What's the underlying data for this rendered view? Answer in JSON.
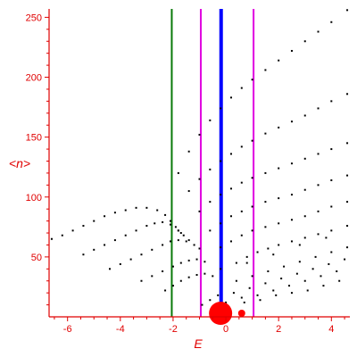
{
  "chart_data": {
    "type": "scatter",
    "title": "",
    "xlabel": "E",
    "ylabel": "<n>",
    "xlim": [
      -6.7,
      4.7
    ],
    "ylim": [
      0,
      257
    ],
    "xticks": [
      -6,
      -4,
      -2,
      0,
      2,
      4
    ],
    "xtick_labels": [
      "-6",
      "-4",
      "-2",
      "0",
      "2",
      "4"
    ],
    "yticks": [
      50,
      100,
      150,
      200,
      250
    ],
    "ytick_labels": [
      "50",
      "100",
      "150",
      "200",
      "250"
    ],
    "grid": false,
    "axis_color": "#e00000",
    "point_color": "#000000",
    "series": [
      {
        "id": "low-branch-1",
        "x": [
          -6.6,
          -6.2,
          -5.8,
          -5.4,
          -5.0,
          -4.6,
          -4.2,
          -3.8,
          -3.4,
          -3.0,
          -2.6,
          -2.3,
          -2.1,
          -1.9,
          -1.8,
          -1.7
        ],
        "y": [
          65,
          68,
          72,
          76,
          80,
          84,
          87,
          89,
          91,
          91,
          89,
          85,
          80,
          75,
          72,
          70
        ]
      },
      {
        "id": "low-branch-2",
        "x": [
          -5.4,
          -5.0,
          -4.6,
          -4.2,
          -3.8,
          -3.4,
          -3.0,
          -2.7,
          -2.4,
          -2.1,
          -1.8,
          -1.6,
          -1.4
        ],
        "y": [
          52,
          56,
          60,
          64,
          68,
          72,
          76,
          78,
          79,
          77,
          72,
          68,
          64
        ]
      },
      {
        "id": "low-branch-3",
        "x": [
          -4.4,
          -4.0,
          -3.6,
          -3.2,
          -2.8,
          -2.4,
          -2.1,
          -1.8,
          -1.5,
          -1.2,
          -1.0
        ],
        "y": [
          40,
          44,
          48,
          52,
          56,
          60,
          63,
          64,
          63,
          60,
          57
        ]
      },
      {
        "id": "low-branch-4",
        "x": [
          -3.2,
          -2.8,
          -2.4,
          -2.0,
          -1.7,
          -1.4,
          -1.1,
          -0.8
        ],
        "y": [
          30,
          34,
          38,
          42,
          45,
          47,
          48,
          46
        ]
      },
      {
        "id": "low-branch-5",
        "x": [
          -2.3,
          -2.0,
          -1.7,
          -1.4,
          -1.1,
          -0.8,
          -0.5
        ],
        "y": [
          22,
          26,
          30,
          33,
          35,
          36,
          34
        ]
      },
      {
        "id": "rise-1",
        "x": [
          -1.8,
          -1.4,
          -1.0,
          -0.6,
          -0.2,
          0.2,
          0.6,
          1.0,
          1.5,
          2.0,
          2.5,
          3.0,
          3.5,
          4.0,
          4.6
        ],
        "y": [
          120,
          138,
          152,
          164,
          174,
          183,
          191,
          198,
          206,
          214,
          222,
          230,
          238,
          246,
          256
        ]
      },
      {
        "id": "rise-2",
        "x": [
          -1.4,
          -1.0,
          -0.6,
          -0.2,
          0.2,
          0.6,
          1.0,
          1.5,
          2.0,
          2.5,
          3.0,
          3.5,
          4.0,
          4.6
        ],
        "y": [
          105,
          115,
          123,
          130,
          136,
          142,
          147,
          153,
          158,
          163,
          168,
          174,
          180,
          186
        ]
      },
      {
        "id": "rise-3",
        "x": [
          -1.0,
          -0.6,
          -0.2,
          0.2,
          0.6,
          1.0,
          1.5,
          2.0,
          2.5,
          3.0,
          3.5,
          4.0,
          4.6
        ],
        "y": [
          88,
          96,
          102,
          107,
          112,
          116,
          120,
          124,
          128,
          132,
          136,
          140,
          145
        ]
      },
      {
        "id": "rise-4",
        "x": [
          -0.6,
          -0.2,
          0.2,
          0.6,
          1.0,
          1.5,
          2.0,
          2.5,
          3.0,
          3.5,
          4.0,
          4.6
        ],
        "y": [
          72,
          78,
          84,
          88,
          92,
          96,
          99,
          102,
          106,
          110,
          114,
          118
        ]
      },
      {
        "id": "rise-5",
        "x": [
          -0.2,
          0.2,
          0.6,
          1.0,
          1.5,
          2.0,
          2.5,
          3.0,
          3.5,
          4.0,
          4.6
        ],
        "y": [
          58,
          63,
          68,
          72,
          75,
          78,
          81,
          84,
          88,
          92,
          96
        ]
      },
      {
        "id": "rise-6",
        "x": [
          0.4,
          0.8,
          1.2,
          1.6,
          2.0,
          2.5,
          3.0,
          3.5,
          4.0,
          4.6
        ],
        "y": [
          45,
          50,
          54,
          57,
          60,
          63,
          66,
          69,
          72,
          76
        ]
      },
      {
        "id": "scatter-cloud",
        "x": [
          -0.9,
          -0.6,
          -0.3,
          0.0,
          0.3,
          0.6,
          0.9,
          1.2,
          1.5,
          1.8,
          2.1,
          2.4,
          2.7,
          3.0,
          3.3,
          3.6,
          3.9,
          4.2,
          4.5,
          -0.5,
          0.1,
          0.7,
          1.3,
          1.9,
          2.5,
          3.1,
          3.7,
          4.3,
          0.4,
          1.0,
          1.6,
          2.2,
          2.8,
          3.4,
          4.0,
          4.6,
          -0.2,
          0.8,
          1.8,
          2.8,
          3.8
        ],
        "y": [
          10,
          14,
          18,
          12,
          20,
          16,
          24,
          18,
          28,
          22,
          32,
          26,
          36,
          30,
          40,
          34,
          44,
          38,
          48,
          6,
          8,
          12,
          14,
          18,
          20,
          22,
          26,
          30,
          30,
          34,
          38,
          42,
          46,
          50,
          54,
          58,
          40,
          45,
          52,
          60,
          66
        ]
      }
    ],
    "vertical_lines": [
      {
        "x": -2.05,
        "color": "#0a7a0a"
      },
      {
        "x": -0.95,
        "color": "#e000e0"
      },
      {
        "x": -0.18,
        "color": "#0000ff"
      },
      {
        "x": 1.05,
        "color": "#e000e0"
      }
    ],
    "markers": [
      {
        "x": -0.2,
        "y": 2,
        "color": "#ff0000",
        "size": "large"
      },
      {
        "x": 0.6,
        "y": 2,
        "color": "#ff0000",
        "size": "small"
      }
    ]
  }
}
